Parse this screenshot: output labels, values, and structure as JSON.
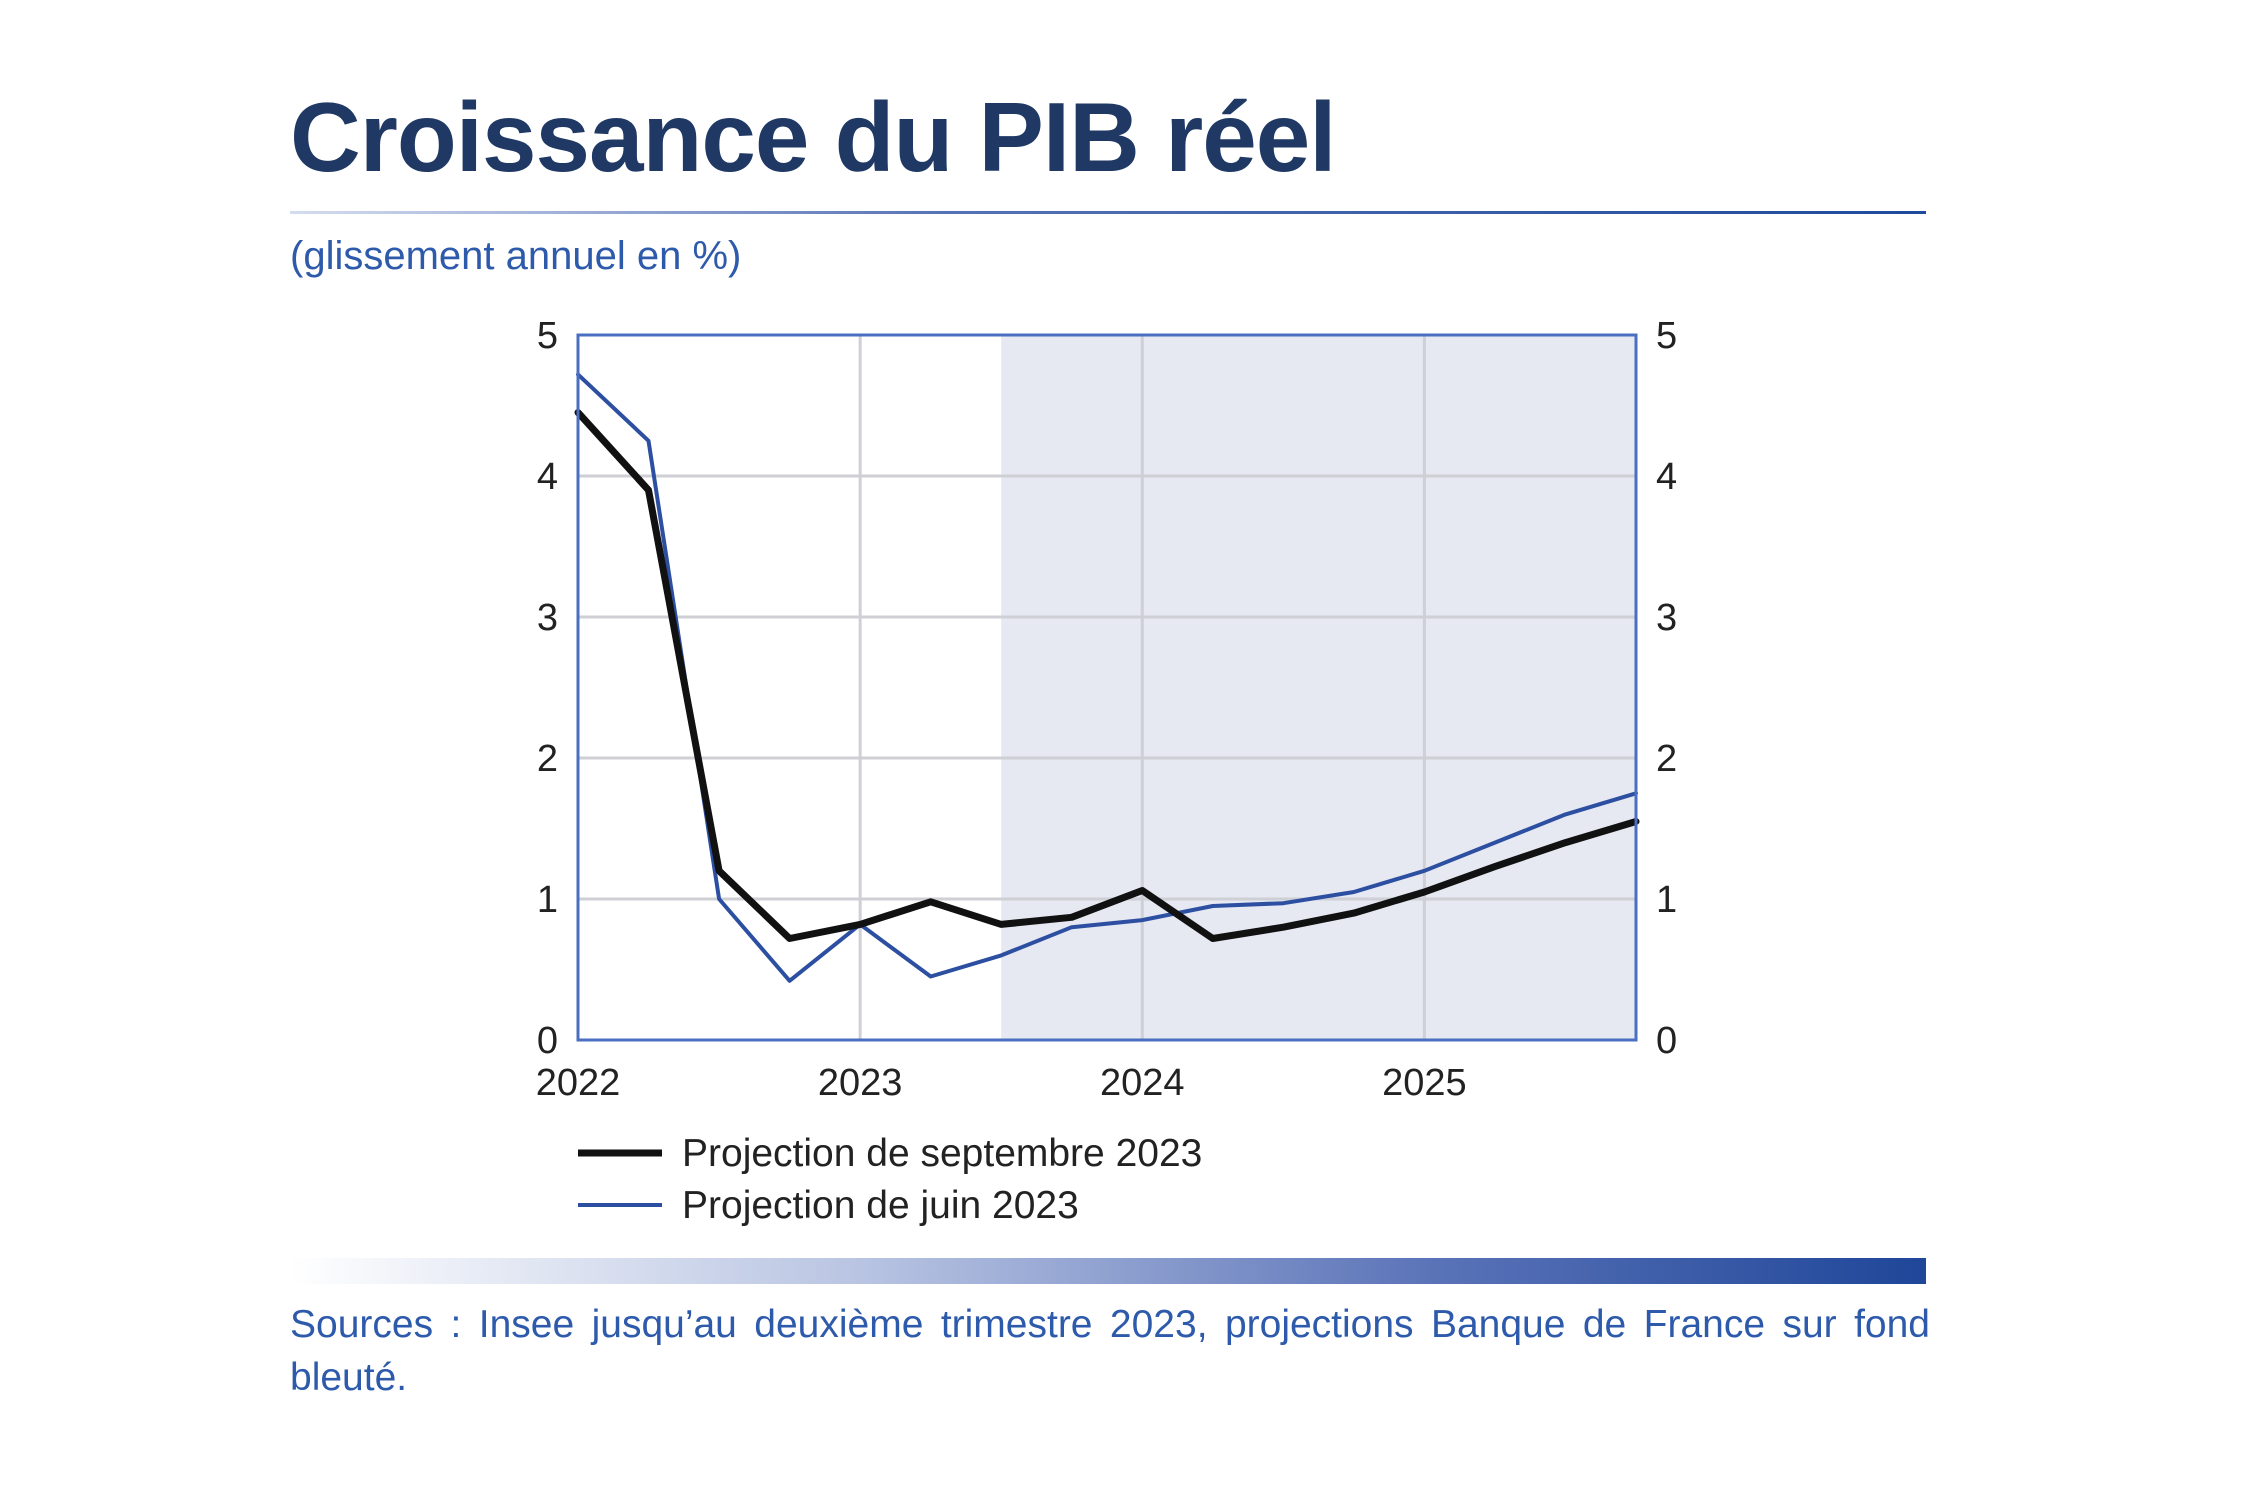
{
  "header": {
    "title": "Croissance du PIB réel",
    "subtitle": "(glissement annuel en %)"
  },
  "footer": {
    "source": "Sources : Insee jusqu’au deuxième trimestre 2023, projections Banque de France sur fond bleuté."
  },
  "colors": {
    "title": "#1f3864",
    "accent": "#2e5aab",
    "frame": "#4a6fc0",
    "shade": "#e6e8f2",
    "series_sep": "#111111",
    "series_jun": "#2d4fa1"
  },
  "chart_data": {
    "type": "line",
    "title": "Croissance du PIB réel",
    "subtitle": "(glissement annuel en %)",
    "ylim": [
      0,
      5
    ],
    "yticks": [
      0,
      1,
      2,
      3,
      4,
      5
    ],
    "ytick_labels": [
      "0",
      "1",
      "2",
      "3",
      "4",
      "5"
    ],
    "xlim": [
      2022.0,
      2025.75
    ],
    "xticks": [
      2022,
      2023,
      2024,
      2025
    ],
    "xtick_labels": [
      "2022",
      "2023",
      "2024",
      "2025"
    ],
    "grid": true,
    "dual_y_axis_labels": true,
    "shaded_region": {
      "from": 2023.5,
      "to": 2025.75,
      "label": "projections Banque de France"
    },
    "legend_position": "bottom-left",
    "x": [
      2022.0,
      2022.25,
      2022.5,
      2022.75,
      2023.0,
      2023.25,
      2023.5,
      2023.75,
      2024.0,
      2024.25,
      2024.5,
      2024.75,
      2025.0,
      2025.25,
      2025.5,
      2025.75
    ],
    "series": [
      {
        "name": "Projection de septembre 2023",
        "color": "#111111",
        "width": 7,
        "values": [
          4.45,
          3.9,
          1.2,
          0.72,
          0.82,
          0.98,
          0.82,
          0.87,
          1.06,
          0.72,
          0.8,
          0.9,
          1.05,
          1.23,
          1.4,
          1.55
        ]
      },
      {
        "name": "Projection de juin 2023",
        "color": "#2d4fa1",
        "width": 4,
        "values": [
          4.72,
          4.25,
          1.0,
          0.42,
          0.82,
          0.45,
          0.6,
          0.8,
          0.85,
          0.95,
          0.97,
          1.05,
          1.2,
          1.4,
          1.6,
          1.75
        ]
      }
    ]
  }
}
